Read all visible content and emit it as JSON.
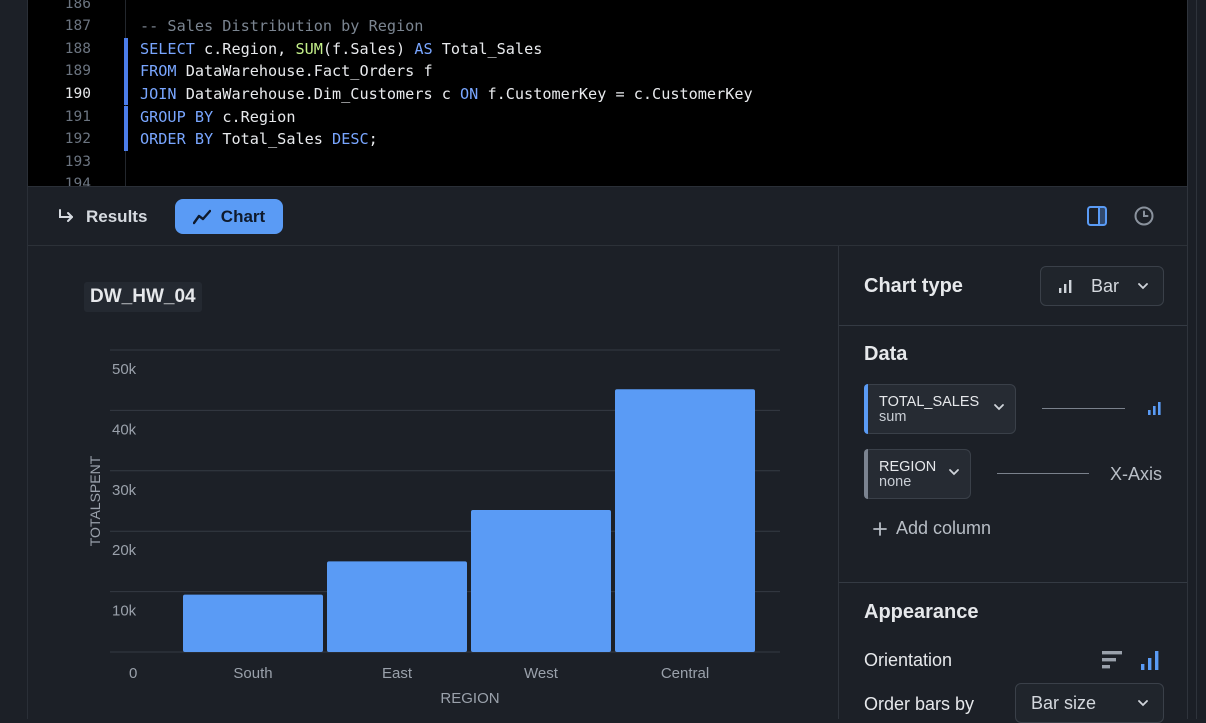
{
  "editor": {
    "lines": [
      {
        "num": "186",
        "text": ""
      },
      {
        "num": "187",
        "text": "-- Sales Distribution by Region"
      },
      {
        "num": "188",
        "text": "SELECT c.Region, SUM(f.Sales) AS Total_Sales"
      },
      {
        "num": "189",
        "text": "FROM DataWarehouse.Fact_Orders f"
      },
      {
        "num": "190",
        "text": "JOIN DataWarehouse.Dim_Customers c ON f.CustomerKey = c.CustomerKey"
      },
      {
        "num": "191",
        "text": "GROUP BY c.Region"
      },
      {
        "num": "192",
        "text": "ORDER BY Total_Sales DESC;"
      },
      {
        "num": "193",
        "text": ""
      },
      {
        "num": "194",
        "text": ""
      }
    ],
    "active_line": "190"
  },
  "toolbar": {
    "results_label": "Results",
    "chart_label": "Chart",
    "accent": "#5a9bf5"
  },
  "chart_panel_title": "DW_HW_04",
  "chart_data": {
    "type": "bar",
    "categories": [
      "South",
      "East",
      "West",
      "Central"
    ],
    "values": [
      9500,
      15000,
      23500,
      43500
    ],
    "xlabel": "REGION",
    "ylabel": "TOTALSPENT",
    "yticks": [
      "0",
      "10k",
      "20k",
      "30k",
      "40k",
      "50k"
    ],
    "ytick_values": [
      0,
      10000,
      20000,
      30000,
      40000,
      50000
    ],
    "ylim": [
      0,
      50000
    ],
    "grid": true,
    "bar_color": "#5a9bf5"
  },
  "settings": {
    "chart_type_label": "Chart type",
    "chart_type_value": "Bar",
    "data_header": "Data",
    "columns": [
      {
        "name": "TOTAL_SALES",
        "agg": "sum",
        "role": "",
        "color": "#5a9bf5"
      },
      {
        "name": "REGION",
        "agg": "none",
        "role": "X-Axis",
        "color": "#7b8390"
      }
    ],
    "add_column_label": "Add column",
    "appearance_header": "Appearance",
    "orientation_label": "Orientation",
    "order_by_label": "Order bars by",
    "order_by_value": "Bar size"
  }
}
